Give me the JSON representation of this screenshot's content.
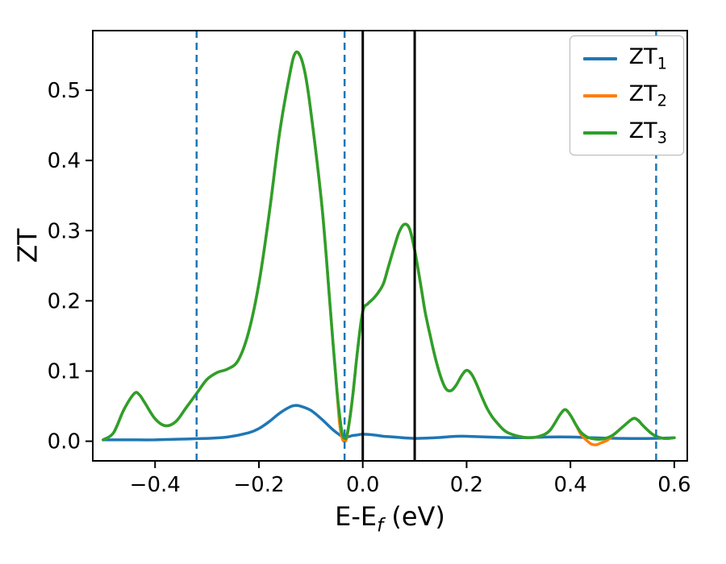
{
  "figure": {
    "background": "#ffffff"
  },
  "chart_data": {
    "type": "line",
    "title": "",
    "xlabel": {
      "prefix": "E-E",
      "sub": "f",
      "suffix": " (eV)"
    },
    "ylabel": "ZT",
    "xlim": [
      -0.52,
      0.625
    ],
    "ylim": [
      -0.028,
      0.585
    ],
    "grid": false,
    "xticks": [
      {
        "v": -0.4,
        "label": "−0.4"
      },
      {
        "v": -0.2,
        "label": "−0.2"
      },
      {
        "v": 0.0,
        "label": "0.0"
      },
      {
        "v": 0.2,
        "label": "0.2"
      },
      {
        "v": 0.4,
        "label": "0.4"
      },
      {
        "v": 0.6,
        "label": "0.6"
      }
    ],
    "yticks": [
      {
        "v": 0.0,
        "label": "0.0"
      },
      {
        "v": 0.1,
        "label": "0.1"
      },
      {
        "v": 0.2,
        "label": "0.2"
      },
      {
        "v": 0.3,
        "label": "0.3"
      },
      {
        "v": 0.4,
        "label": "0.4"
      },
      {
        "v": 0.5,
        "label": "0.5"
      }
    ],
    "legend": {
      "position": "upper right",
      "items": [
        {
          "base": "ZT",
          "sub": "1",
          "color": "#1f77b4"
        },
        {
          "base": "ZT",
          "sub": "2",
          "color": "#ff7f0e"
        },
        {
          "base": "ZT",
          "sub": "3",
          "color": "#2ca02c"
        }
      ]
    },
    "vlines": {
      "dashed": {
        "color": "#1f77b4",
        "width": 2.5,
        "x": [
          -0.32,
          -0.035,
          0.565
        ]
      },
      "solid": {
        "color": "#000000",
        "width": 3,
        "x": [
          0.0,
          0.1
        ]
      }
    },
    "series": [
      {
        "name": "ZT1",
        "color": "#1f77b4",
        "points": [
          [
            -0.5,
            0.002
          ],
          [
            -0.45,
            0.002
          ],
          [
            -0.4,
            0.002
          ],
          [
            -0.35,
            0.003
          ],
          [
            -0.3,
            0.004
          ],
          [
            -0.26,
            0.006
          ],
          [
            -0.22,
            0.012
          ],
          [
            -0.2,
            0.018
          ],
          [
            -0.18,
            0.028
          ],
          [
            -0.16,
            0.04
          ],
          [
            -0.14,
            0.049
          ],
          [
            -0.13,
            0.051
          ],
          [
            -0.12,
            0.05
          ],
          [
            -0.1,
            0.044
          ],
          [
            -0.08,
            0.032
          ],
          [
            -0.06,
            0.018
          ],
          [
            -0.05,
            0.012
          ],
          [
            -0.04,
            0.007
          ],
          [
            -0.03,
            0.006
          ],
          [
            -0.02,
            0.008
          ],
          [
            -0.01,
            0.009
          ],
          [
            0.0,
            0.01
          ],
          [
            0.02,
            0.009
          ],
          [
            0.04,
            0.007
          ],
          [
            0.06,
            0.006
          ],
          [
            0.1,
            0.004
          ],
          [
            0.14,
            0.005
          ],
          [
            0.18,
            0.007
          ],
          [
            0.2,
            0.007
          ],
          [
            0.24,
            0.006
          ],
          [
            0.3,
            0.005
          ],
          [
            0.36,
            0.006
          ],
          [
            0.4,
            0.006
          ],
          [
            0.44,
            0.005
          ],
          [
            0.5,
            0.004
          ],
          [
            0.56,
            0.004
          ],
          [
            0.6,
            0.005
          ]
        ]
      },
      {
        "name": "ZT2",
        "color": "#ff7f0e",
        "points": [
          [
            -0.5,
            0.002
          ],
          [
            -0.48,
            0.012
          ],
          [
            -0.46,
            0.045
          ],
          [
            -0.44,
            0.068
          ],
          [
            -0.43,
            0.066
          ],
          [
            -0.42,
            0.055
          ],
          [
            -0.4,
            0.032
          ],
          [
            -0.38,
            0.022
          ],
          [
            -0.36,
            0.028
          ],
          [
            -0.34,
            0.048
          ],
          [
            -0.32,
            0.068
          ],
          [
            -0.3,
            0.088
          ],
          [
            -0.28,
            0.098
          ],
          [
            -0.26,
            0.103
          ],
          [
            -0.24,
            0.115
          ],
          [
            -0.22,
            0.155
          ],
          [
            -0.2,
            0.225
          ],
          [
            -0.18,
            0.325
          ],
          [
            -0.16,
            0.44
          ],
          [
            -0.14,
            0.525
          ],
          [
            -0.13,
            0.553
          ],
          [
            -0.12,
            0.548
          ],
          [
            -0.11,
            0.52
          ],
          [
            -0.1,
            0.47
          ],
          [
            -0.08,
            0.345
          ],
          [
            -0.07,
            0.26
          ],
          [
            -0.06,
            0.165
          ],
          [
            -0.05,
            0.075
          ],
          [
            -0.045,
            0.028
          ],
          [
            -0.04,
            0.005
          ],
          [
            -0.035,
            0.0
          ],
          [
            -0.03,
            0.008
          ],
          [
            -0.02,
            0.06
          ],
          [
            -0.01,
            0.13
          ],
          [
            0.0,
            0.185
          ],
          [
            0.01,
            0.196
          ],
          [
            0.02,
            0.203
          ],
          [
            0.03,
            0.212
          ],
          [
            0.04,
            0.225
          ],
          [
            0.05,
            0.25
          ],
          [
            0.06,
            0.275
          ],
          [
            0.07,
            0.298
          ],
          [
            0.08,
            0.309
          ],
          [
            0.09,
            0.303
          ],
          [
            0.1,
            0.272
          ],
          [
            0.11,
            0.23
          ],
          [
            0.12,
            0.185
          ],
          [
            0.13,
            0.15
          ],
          [
            0.14,
            0.118
          ],
          [
            0.15,
            0.092
          ],
          [
            0.16,
            0.075
          ],
          [
            0.17,
            0.072
          ],
          [
            0.18,
            0.08
          ],
          [
            0.19,
            0.093
          ],
          [
            0.2,
            0.101
          ],
          [
            0.21,
            0.095
          ],
          [
            0.22,
            0.08
          ],
          [
            0.23,
            0.062
          ],
          [
            0.24,
            0.046
          ],
          [
            0.25,
            0.034
          ],
          [
            0.26,
            0.025
          ],
          [
            0.27,
            0.017
          ],
          [
            0.28,
            0.012
          ],
          [
            0.3,
            0.007
          ],
          [
            0.32,
            0.005
          ],
          [
            0.34,
            0.007
          ],
          [
            0.36,
            0.015
          ],
          [
            0.38,
            0.038
          ],
          [
            0.39,
            0.045
          ],
          [
            0.4,
            0.037
          ],
          [
            0.41,
            0.024
          ],
          [
            0.42,
            0.01
          ],
          [
            0.43,
            0.002
          ],
          [
            0.44,
            -0.004
          ],
          [
            0.45,
            -0.005
          ],
          [
            0.46,
            -0.002
          ],
          [
            0.47,
            0.001
          ],
          [
            0.48,
            0.007
          ],
          [
            0.5,
            0.02
          ],
          [
            0.52,
            0.032
          ],
          [
            0.53,
            0.03
          ],
          [
            0.54,
            0.022
          ],
          [
            0.56,
            0.009
          ],
          [
            0.58,
            0.004
          ],
          [
            0.6,
            0.005
          ]
        ]
      },
      {
        "name": "ZT3",
        "color": "#2ca02c",
        "points": [
          [
            -0.5,
            0.002
          ],
          [
            -0.48,
            0.012
          ],
          [
            -0.46,
            0.045
          ],
          [
            -0.44,
            0.068
          ],
          [
            -0.43,
            0.066
          ],
          [
            -0.42,
            0.055
          ],
          [
            -0.4,
            0.032
          ],
          [
            -0.38,
            0.022
          ],
          [
            -0.36,
            0.028
          ],
          [
            -0.34,
            0.048
          ],
          [
            -0.32,
            0.068
          ],
          [
            -0.3,
            0.088
          ],
          [
            -0.28,
            0.098
          ],
          [
            -0.26,
            0.103
          ],
          [
            -0.24,
            0.115
          ],
          [
            -0.22,
            0.155
          ],
          [
            -0.2,
            0.225
          ],
          [
            -0.18,
            0.325
          ],
          [
            -0.16,
            0.44
          ],
          [
            -0.14,
            0.525
          ],
          [
            -0.13,
            0.553
          ],
          [
            -0.12,
            0.548
          ],
          [
            -0.11,
            0.52
          ],
          [
            -0.1,
            0.47
          ],
          [
            -0.08,
            0.345
          ],
          [
            -0.07,
            0.26
          ],
          [
            -0.06,
            0.165
          ],
          [
            -0.05,
            0.075
          ],
          [
            -0.045,
            0.04
          ],
          [
            -0.04,
            0.012
          ],
          [
            -0.035,
            0.004
          ],
          [
            -0.03,
            0.01
          ],
          [
            -0.02,
            0.06
          ],
          [
            -0.01,
            0.13
          ],
          [
            0.0,
            0.185
          ],
          [
            0.01,
            0.196
          ],
          [
            0.02,
            0.203
          ],
          [
            0.03,
            0.212
          ],
          [
            0.04,
            0.225
          ],
          [
            0.05,
            0.25
          ],
          [
            0.06,
            0.275
          ],
          [
            0.07,
            0.298
          ],
          [
            0.08,
            0.309
          ],
          [
            0.09,
            0.303
          ],
          [
            0.1,
            0.272
          ],
          [
            0.11,
            0.23
          ],
          [
            0.12,
            0.185
          ],
          [
            0.13,
            0.15
          ],
          [
            0.14,
            0.118
          ],
          [
            0.15,
            0.092
          ],
          [
            0.16,
            0.075
          ],
          [
            0.17,
            0.072
          ],
          [
            0.18,
            0.08
          ],
          [
            0.19,
            0.093
          ],
          [
            0.2,
            0.101
          ],
          [
            0.21,
            0.095
          ],
          [
            0.22,
            0.08
          ],
          [
            0.23,
            0.062
          ],
          [
            0.24,
            0.046
          ],
          [
            0.25,
            0.034
          ],
          [
            0.26,
            0.025
          ],
          [
            0.27,
            0.017
          ],
          [
            0.28,
            0.012
          ],
          [
            0.3,
            0.007
          ],
          [
            0.32,
            0.005
          ],
          [
            0.34,
            0.007
          ],
          [
            0.36,
            0.015
          ],
          [
            0.38,
            0.038
          ],
          [
            0.39,
            0.045
          ],
          [
            0.4,
            0.037
          ],
          [
            0.41,
            0.024
          ],
          [
            0.42,
            0.013
          ],
          [
            0.43,
            0.007
          ],
          [
            0.44,
            0.004
          ],
          [
            0.46,
            0.003
          ],
          [
            0.48,
            0.008
          ],
          [
            0.5,
            0.02
          ],
          [
            0.52,
            0.032
          ],
          [
            0.53,
            0.03
          ],
          [
            0.54,
            0.022
          ],
          [
            0.56,
            0.009
          ],
          [
            0.58,
            0.004
          ],
          [
            0.6,
            0.005
          ]
        ]
      }
    ]
  }
}
